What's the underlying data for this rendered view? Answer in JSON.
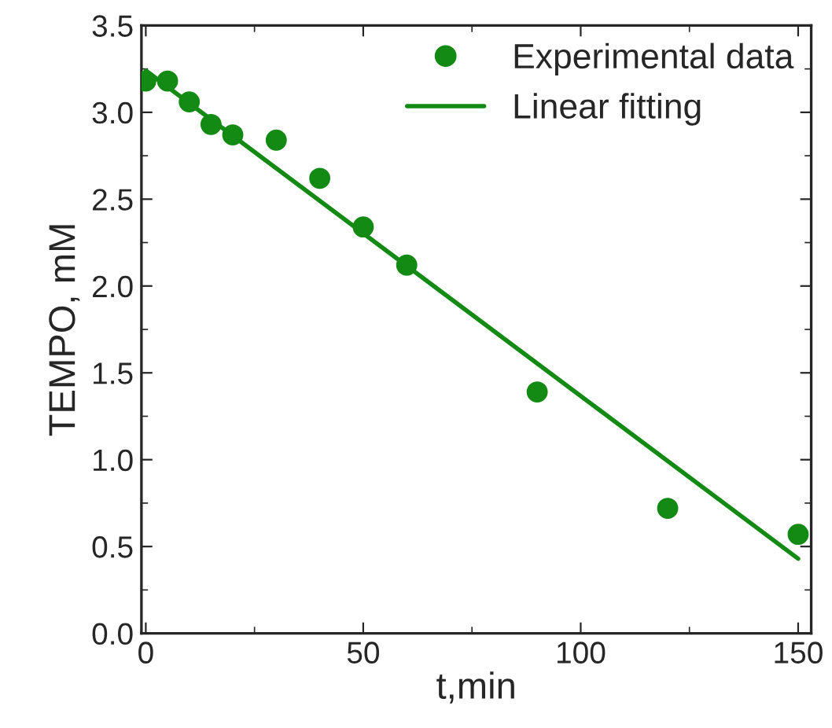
{
  "chart_data": {
    "type": "scatter",
    "xlabel": "t,min",
    "ylabel": "TEMPO, mM",
    "xlim": [
      -1,
      153
    ],
    "xticks": [
      0,
      50,
      100,
      150
    ],
    "ylim": [
      0,
      3.5
    ],
    "yticks": [
      {
        "value": 0,
        "label": "0.0"
      },
      {
        "value": 0.5,
        "label": "0.5"
      },
      {
        "value": 1,
        "label": "1.0"
      },
      {
        "value": 1.5,
        "label": "1.5"
      },
      {
        "value": 2,
        "label": "2.0"
      },
      {
        "value": 2.5,
        "label": "2.5"
      },
      {
        "value": 3,
        "label": "3.0"
      },
      {
        "value": 3.5,
        "label": "3.5"
      }
    ],
    "grid": false,
    "legend": "top right",
    "series": [
      {
        "name": "Experimental data",
        "color": "#138a13",
        "marker": "circle",
        "x": [
          0,
          5,
          10,
          15,
          20,
          30,
          40,
          50,
          60,
          90,
          120,
          150
        ],
        "values": [
          3.18,
          3.18,
          3.06,
          2.93,
          2.87,
          2.84,
          2.62,
          2.34,
          2.12,
          1.39,
          0.72,
          0.57
        ]
      },
      {
        "name": "Linear fitting",
        "type": "line",
        "color": "#138a13",
        "line_style": "solid",
        "x": [
          0,
          150
        ],
        "values": [
          3.24,
          0.43
        ]
      }
    ]
  }
}
